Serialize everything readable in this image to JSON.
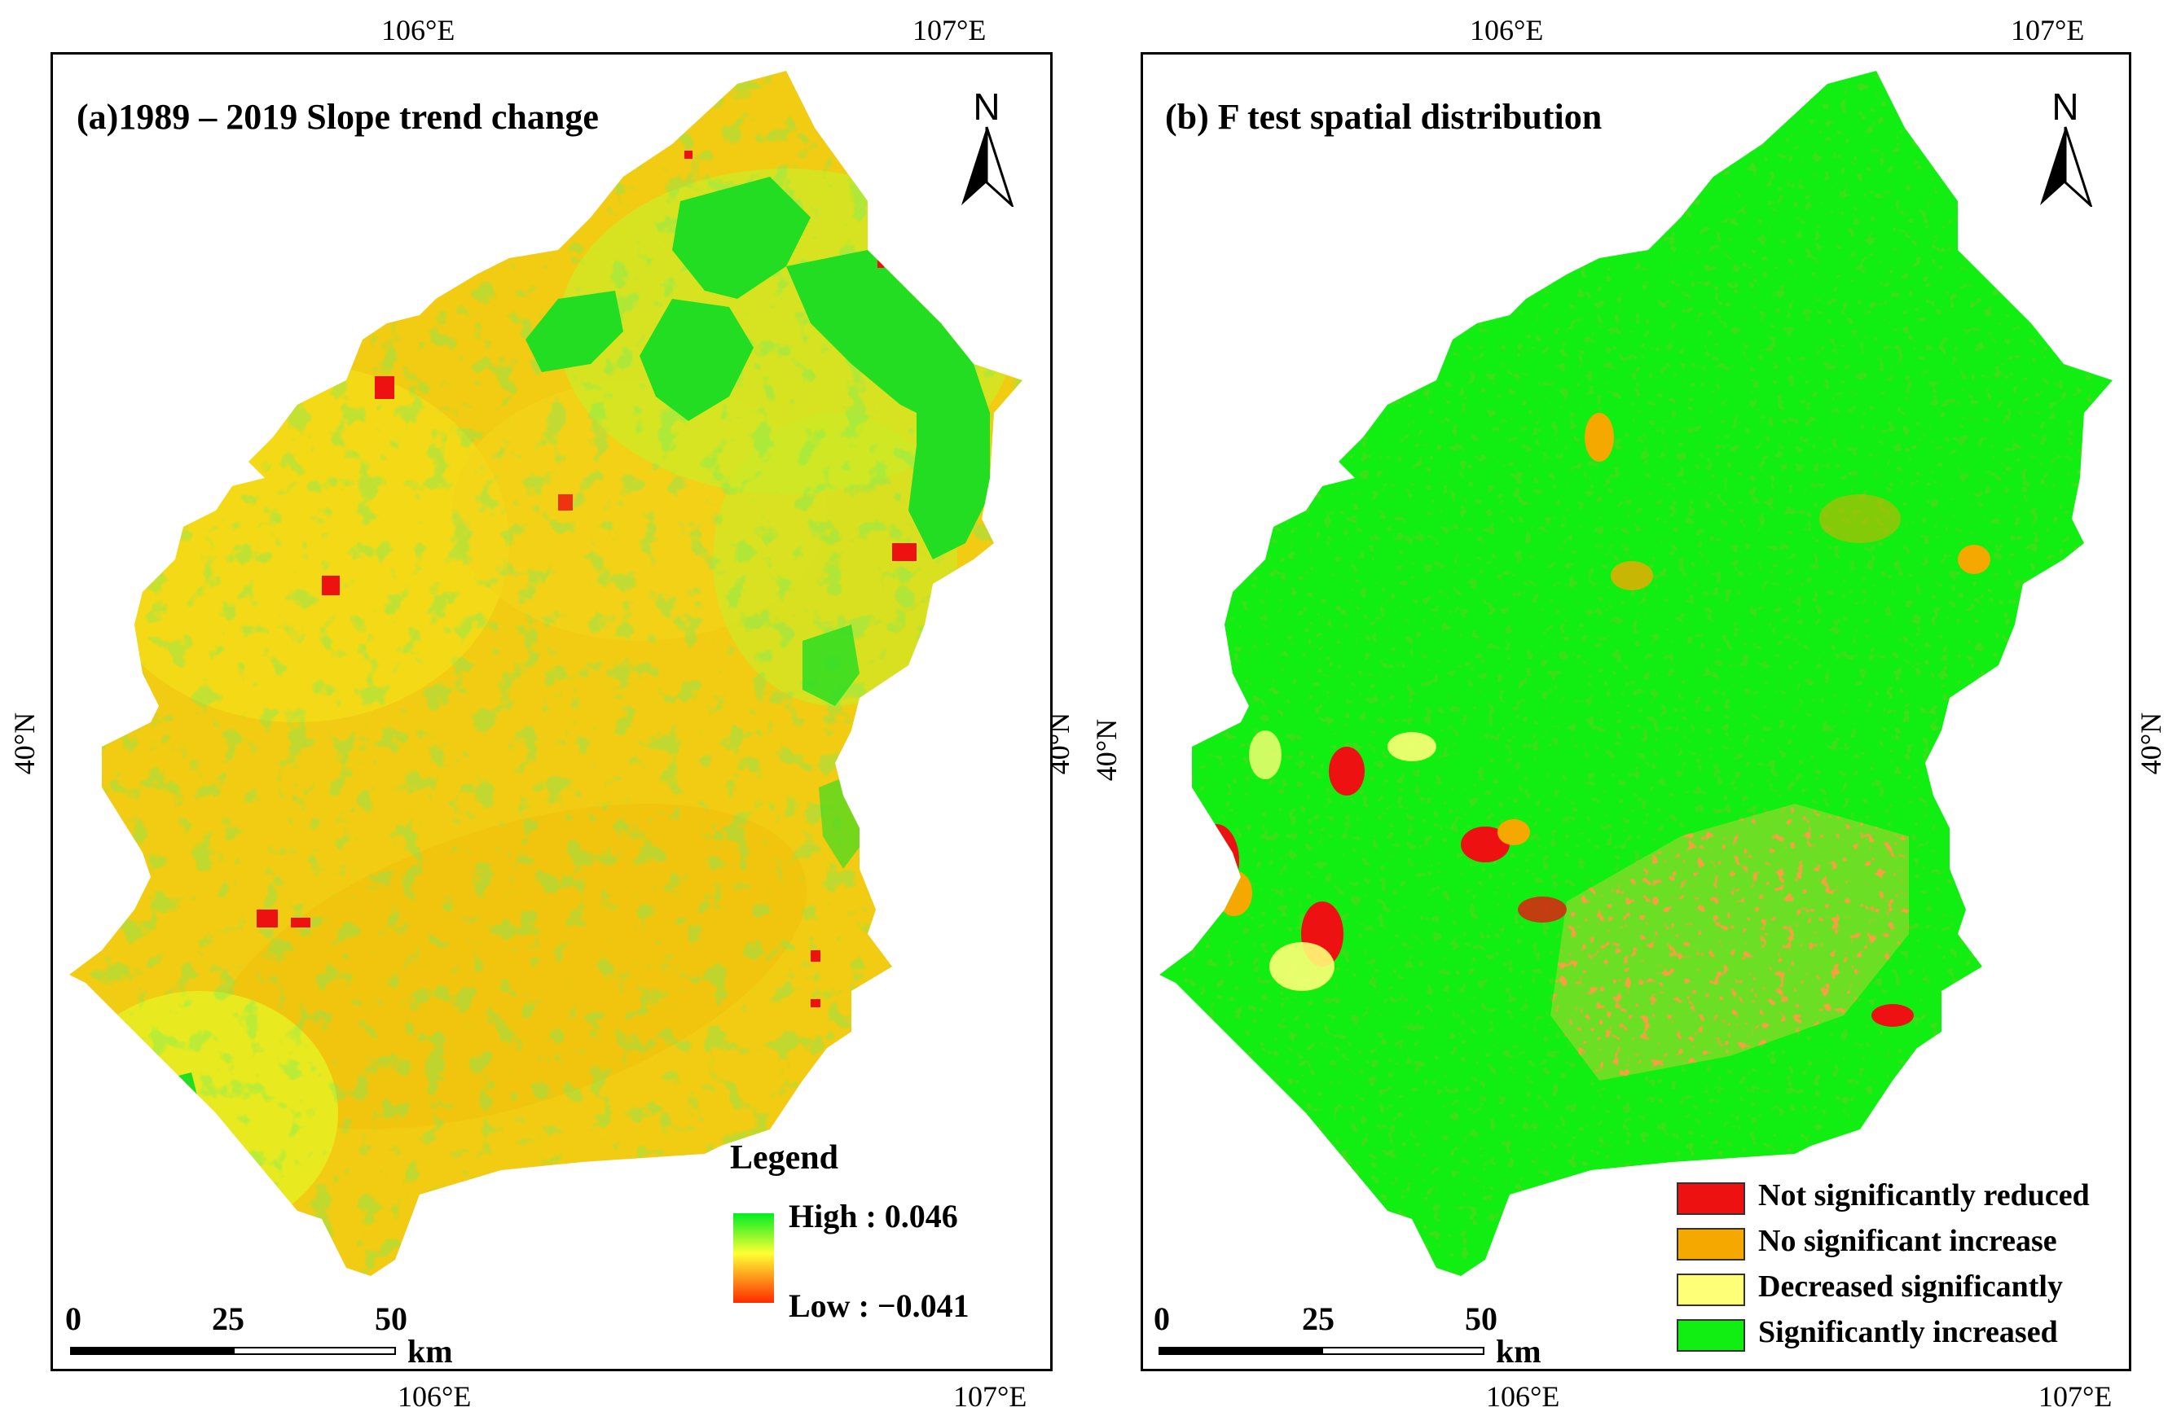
{
  "panels": [
    {
      "title": "(a)1989 – 2019 Slope trend change",
      "lon_top": [
        "106°E",
        "107°E"
      ],
      "lon_bottom": [
        "106°E",
        "107°E"
      ],
      "lat_left": "40°N",
      "lat_right": "40°N",
      "north_label": "N",
      "scale": {
        "ticks": [
          "0",
          "25",
          "50"
        ],
        "unit": "km"
      },
      "legend": {
        "title": "Legend",
        "high": "High : 0.046",
        "low": "Low : −0.041",
        "colors": [
          "#00ee22",
          "#ffff33",
          "#ff2a00"
        ]
      }
    },
    {
      "title": "(b) F test spatial distribution",
      "lon_top": [
        "106°E",
        "107°E"
      ],
      "lon_bottom": [
        "106°E",
        "107°E"
      ],
      "lat_left": "40°N",
      "lat_right": "40°N",
      "north_label": "N",
      "scale": {
        "ticks": [
          "0",
          "25",
          "50"
        ],
        "unit": "km"
      },
      "classes": [
        {
          "label": "Not significantly reduced",
          "color": "#ee1111"
        },
        {
          "label": "No significant increase",
          "color": "#f5a800"
        },
        {
          "label": "Decreased significantly",
          "color": "#ffff77"
        },
        {
          "label": "Significantly increased",
          "color": "#11ee11"
        }
      ]
    }
  ],
  "colors": {
    "map_a_base": "#f2cc12",
    "map_a_light": "#e6ee22",
    "map_a_green": "#22dd22",
    "map_b_base": "#11ee11"
  }
}
